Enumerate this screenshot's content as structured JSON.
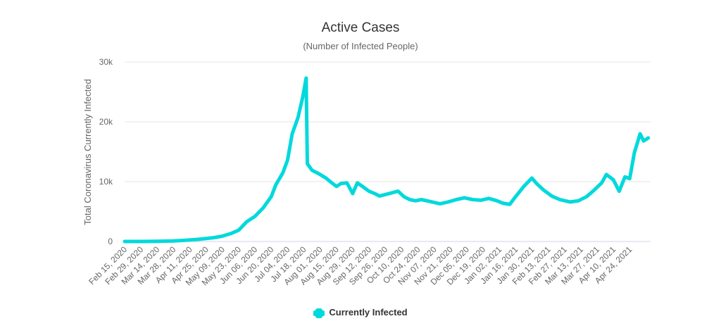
{
  "chart_data": {
    "type": "line",
    "title": "Active Cases",
    "subtitle": "(Number of Infected People)",
    "xlabel": "",
    "ylabel": "Total Coronavirus Currently Infected",
    "ylim": [
      0,
      30000
    ],
    "yticks": [
      0,
      10000,
      20000,
      30000
    ],
    "ytick_labels": [
      "0",
      "10k",
      "20k",
      "30k"
    ],
    "x_start_date": "2020-02-15",
    "x_days_range": [
      0,
      452
    ],
    "xtick_labels": [
      "Feb 15, 2020",
      "Feb 29, 2020",
      "Mar 14, 2020",
      "Mar 28, 2020",
      "Apr 11, 2020",
      "Apr 25, 2020",
      "May 09, 2020",
      "May 23, 2020",
      "Jun 06, 2020",
      "Jun 20, 2020",
      "Jul 04, 2020",
      "Jul 18, 2020",
      "Aug 01, 2020",
      "Aug 15, 2020",
      "Aug 29, 2020",
      "Sep 12, 2020",
      "Sep 26, 2020",
      "Oct 10, 2020",
      "Oct 24, 2020",
      "Nov 07, 2020",
      "Nov 21, 2020",
      "Dec 05, 2020",
      "Dec 19, 2020",
      "Jan 02, 2021",
      "Jan 16, 2021",
      "Jan 30, 2021",
      "Feb 13, 2021",
      "Feb 27, 2021",
      "Mar 13, 2021",
      "Mar 27, 2021",
      "Apr 10, 2021",
      "Apr 24, 2021"
    ],
    "grid": true,
    "legend": "bottom-center",
    "series": [
      {
        "name": "Currently Infected",
        "color": "#00d9dc",
        "x_days": [
          0,
          14,
          28,
          42,
          56,
          63,
          70,
          77,
          84,
          91,
          98,
          105,
          112,
          119,
          126,
          130,
          136,
          140,
          144,
          149,
          153,
          156,
          157,
          161,
          167,
          173,
          178,
          182,
          186,
          191,
          196,
          200,
          205,
          210,
          215,
          219,
          225,
          231,
          235,
          240,
          245,
          250,
          255,
          262,
          271,
          278,
          285,
          292,
          299,
          306,
          313,
          320,
          325,
          331,
          336,
          343,
          347,
          350,
          354,
          360,
          367,
          374,
          383,
          390,
          397,
          403,
          410,
          414,
          420,
          425,
          430,
          434,
          438,
          443,
          446,
          450
        ],
        "values": [
          0,
          0,
          20,
          80,
          250,
          350,
          500,
          650,
          900,
          1300,
          1900,
          3300,
          4200,
          5600,
          7500,
          9500,
          11500,
          13600,
          18000,
          20700,
          24100,
          27300,
          13000,
          11900,
          11300,
          10600,
          9800,
          9200,
          9700,
          9800,
          8000,
          9800,
          9100,
          8400,
          8000,
          7600,
          7900,
          8200,
          8400,
          7500,
          7000,
          6800,
          7000,
          6700,
          6300,
          6600,
          7000,
          7300,
          7000,
          6900,
          7200,
          6800,
          6400,
          6200,
          7500,
          9200,
          10000,
          10600,
          9700,
          8600,
          7600,
          7000,
          6600,
          6800,
          7500,
          8500,
          9800,
          11200,
          10300,
          8400,
          10800,
          10500,
          14800,
          18000,
          16800,
          17300
        ]
      }
    ]
  }
}
